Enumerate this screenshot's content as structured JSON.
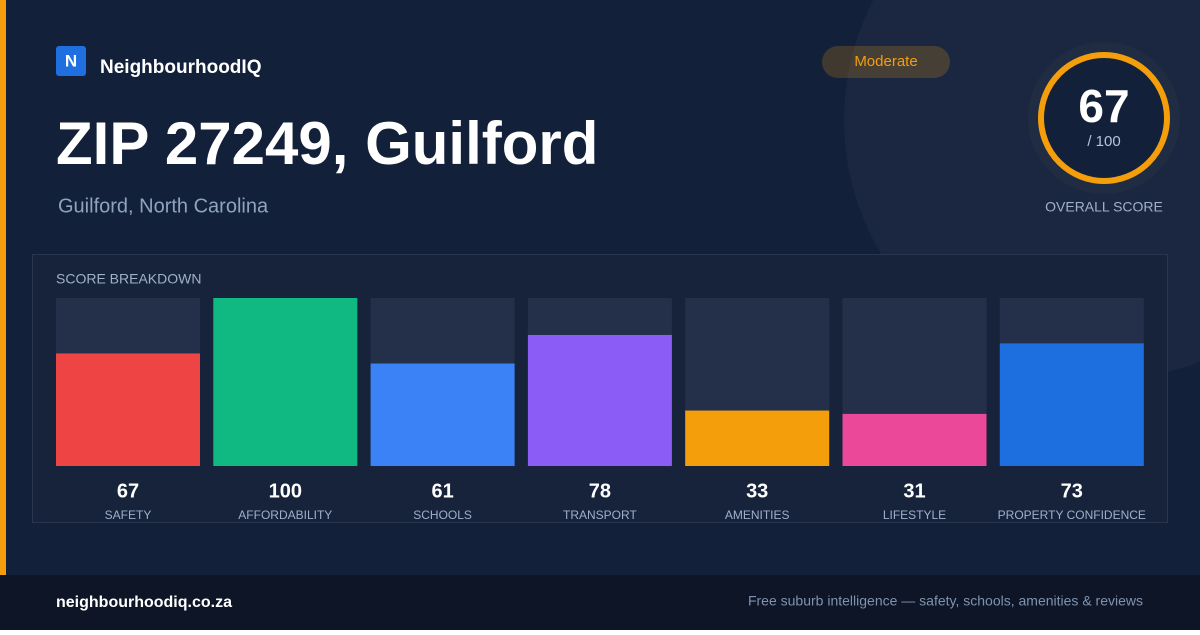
{
  "brand": {
    "logo_letter": "N",
    "name": "NeighbourhoodIQ"
  },
  "header": {
    "title": "ZIP 27249, Guilford",
    "subtitle": "Guilford, North Carolina",
    "badge": "Moderate"
  },
  "overall": {
    "score": "67",
    "out_of": "/ 100",
    "label": "OVERALL SCORE"
  },
  "breakdown": {
    "title": "SCORE BREAKDOWN",
    "ylim": [
      0,
      100
    ],
    "items": [
      {
        "label": "SAFETY",
        "value": 67,
        "color": "#ef4444"
      },
      {
        "label": "AFFORDABILITY",
        "value": 100,
        "color": "#10b981"
      },
      {
        "label": "SCHOOLS",
        "value": 61,
        "color": "#3b82f6"
      },
      {
        "label": "TRANSPORT",
        "value": 78,
        "color": "#8b5cf6"
      },
      {
        "label": "AMENITIES",
        "value": 33,
        "color": "#f59e0b"
      },
      {
        "label": "LIFESTYLE",
        "value": 31,
        "color": "#ec4899"
      },
      {
        "label": "PROPERTY CONFIDENCE",
        "value": 73,
        "color": "#1d6fe0"
      }
    ]
  },
  "footer": {
    "site": "neighbourhoodiq.co.za",
    "tagline": "Free suburb intelligence — safety, schools, amenities & reviews"
  }
}
